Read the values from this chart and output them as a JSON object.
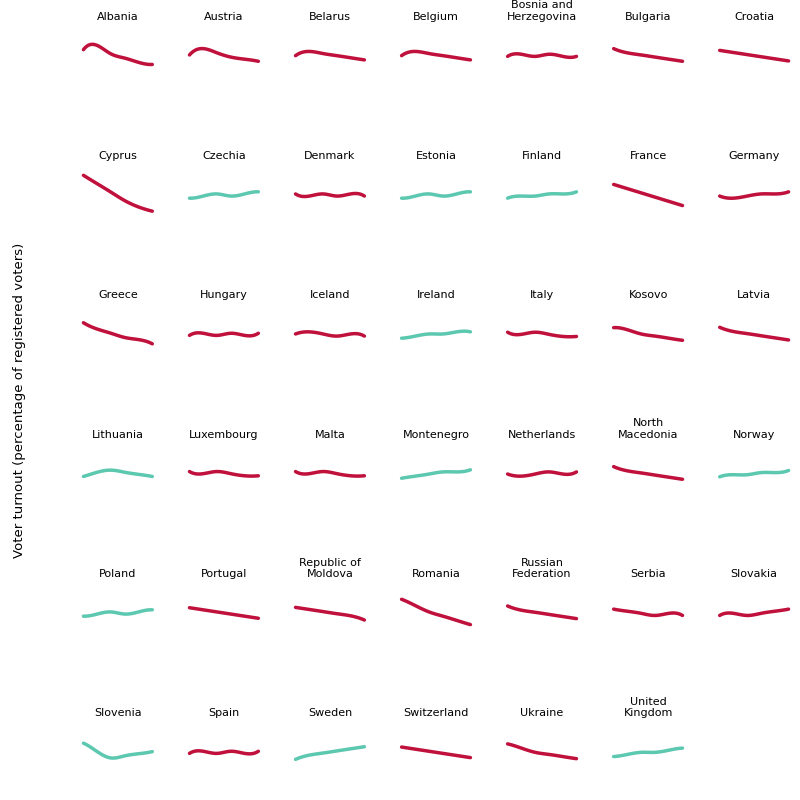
{
  "countries": [
    {
      "name": "Albania",
      "color": "crimson",
      "y": [
        0.5,
        0.52,
        0.48,
        0.46,
        0.44,
        0.43
      ],
      "row": 0,
      "col": 0
    },
    {
      "name": "Austria",
      "color": "crimson",
      "y": [
        0.55,
        0.58,
        0.56,
        0.54,
        0.53,
        0.52
      ],
      "row": 0,
      "col": 1
    },
    {
      "name": "Belarus",
      "color": "crimson",
      "y": [
        0.54,
        0.56,
        0.55,
        0.54,
        0.53,
        0.52
      ],
      "row": 0,
      "col": 2
    },
    {
      "name": "Belgium",
      "color": "crimson",
      "y": [
        0.58,
        0.6,
        0.59,
        0.58,
        0.57,
        0.56
      ],
      "row": 0,
      "col": 3
    },
    {
      "name": "Bosnia and\nHerzegovina",
      "color": "crimson",
      "y": [
        0.5,
        0.51,
        0.5,
        0.51,
        0.5,
        0.5
      ],
      "row": 0,
      "col": 4
    },
    {
      "name": "Bulgaria",
      "color": "crimson",
      "y": [
        0.52,
        0.5,
        0.49,
        0.48,
        0.47,
        0.46
      ],
      "row": 0,
      "col": 5
    },
    {
      "name": "Croatia",
      "color": "crimson",
      "y": [
        0.52,
        0.51,
        0.5,
        0.49,
        0.48,
        0.47
      ],
      "row": 0,
      "col": 6
    },
    {
      "name": "Cyprus",
      "color": "crimson",
      "y": [
        0.6,
        0.56,
        0.52,
        0.48,
        0.45,
        0.43
      ],
      "row": 1,
      "col": 0
    },
    {
      "name": "Czechia",
      "color": "teal",
      "y": [
        0.48,
        0.49,
        0.5,
        0.49,
        0.5,
        0.51
      ],
      "row": 1,
      "col": 1
    },
    {
      "name": "Denmark",
      "color": "crimson",
      "y": [
        0.54,
        0.53,
        0.54,
        0.53,
        0.54,
        0.53
      ],
      "row": 1,
      "col": 2
    },
    {
      "name": "Estonia",
      "color": "teal",
      "y": [
        0.48,
        0.49,
        0.5,
        0.49,
        0.5,
        0.51
      ],
      "row": 1,
      "col": 3
    },
    {
      "name": "Finland",
      "color": "teal",
      "y": [
        0.49,
        0.5,
        0.5,
        0.51,
        0.51,
        0.52
      ],
      "row": 1,
      "col": 4
    },
    {
      "name": "France",
      "color": "crimson",
      "y": [
        0.54,
        0.52,
        0.5,
        0.48,
        0.46,
        0.44
      ],
      "row": 1,
      "col": 5
    },
    {
      "name": "Germany",
      "color": "crimson",
      "y": [
        0.5,
        0.49,
        0.5,
        0.51,
        0.51,
        0.52
      ],
      "row": 1,
      "col": 6
    },
    {
      "name": "Greece",
      "color": "crimson",
      "y": [
        0.54,
        0.51,
        0.49,
        0.47,
        0.46,
        0.44
      ],
      "row": 2,
      "col": 0
    },
    {
      "name": "Hungary",
      "color": "crimson",
      "y": [
        0.5,
        0.51,
        0.5,
        0.51,
        0.5,
        0.51
      ],
      "row": 2,
      "col": 1
    },
    {
      "name": "Iceland",
      "color": "crimson",
      "y": [
        0.54,
        0.55,
        0.54,
        0.53,
        0.54,
        0.53
      ],
      "row": 2,
      "col": 2
    },
    {
      "name": "Ireland",
      "color": "teal",
      "y": [
        0.49,
        0.5,
        0.51,
        0.51,
        0.52,
        0.52
      ],
      "row": 2,
      "col": 3
    },
    {
      "name": "Italy",
      "color": "crimson",
      "y": [
        0.54,
        0.53,
        0.54,
        0.53,
        0.52,
        0.52
      ],
      "row": 2,
      "col": 4
    },
    {
      "name": "Kosovo",
      "color": "crimson",
      "y": [
        0.5,
        0.49,
        0.47,
        0.46,
        0.45,
        0.44
      ],
      "row": 2,
      "col": 5
    },
    {
      "name": "Latvia",
      "color": "crimson",
      "y": [
        0.53,
        0.51,
        0.5,
        0.49,
        0.48,
        0.47
      ],
      "row": 2,
      "col": 6
    },
    {
      "name": "Lithuania",
      "color": "teal",
      "y": [
        0.52,
        0.54,
        0.55,
        0.54,
        0.53,
        0.52
      ],
      "row": 3,
      "col": 0
    },
    {
      "name": "Luxembourg",
      "color": "crimson",
      "y": [
        0.54,
        0.53,
        0.54,
        0.53,
        0.52,
        0.52
      ],
      "row": 3,
      "col": 1
    },
    {
      "name": "Malta",
      "color": "crimson",
      "y": [
        0.54,
        0.53,
        0.54,
        0.53,
        0.52,
        0.52
      ],
      "row": 3,
      "col": 2
    },
    {
      "name": "Montenegro",
      "color": "teal",
      "y": [
        0.49,
        0.5,
        0.51,
        0.52,
        0.52,
        0.53
      ],
      "row": 3,
      "col": 3
    },
    {
      "name": "Netherlands",
      "color": "crimson",
      "y": [
        0.51,
        0.5,
        0.51,
        0.52,
        0.51,
        0.52
      ],
      "row": 3,
      "col": 4
    },
    {
      "name": "North\nMacedonia",
      "color": "crimson",
      "y": [
        0.52,
        0.5,
        0.49,
        0.48,
        0.47,
        0.46
      ],
      "row": 3,
      "col": 5
    },
    {
      "name": "Norway",
      "color": "teal",
      "y": [
        0.52,
        0.53,
        0.53,
        0.54,
        0.54,
        0.55
      ],
      "row": 3,
      "col": 6
    },
    {
      "name": "Poland",
      "color": "teal",
      "y": [
        0.51,
        0.52,
        0.53,
        0.52,
        0.53,
        0.54
      ],
      "row": 4,
      "col": 0
    },
    {
      "name": "Portugal",
      "color": "crimson",
      "y": [
        0.54,
        0.53,
        0.52,
        0.51,
        0.5,
        0.49
      ],
      "row": 4,
      "col": 1
    },
    {
      "name": "Republic of\nMoldova",
      "color": "crimson",
      "y": [
        0.54,
        0.53,
        0.52,
        0.51,
        0.5,
        0.48
      ],
      "row": 4,
      "col": 2
    },
    {
      "name": "Romania",
      "color": "crimson",
      "y": [
        0.55,
        0.52,
        0.49,
        0.47,
        0.45,
        0.43
      ],
      "row": 4,
      "col": 3
    },
    {
      "name": "Russian\nFederation",
      "color": "crimson",
      "y": [
        0.54,
        0.52,
        0.51,
        0.5,
        0.49,
        0.48
      ],
      "row": 4,
      "col": 4
    },
    {
      "name": "Serbia",
      "color": "crimson",
      "y": [
        0.54,
        0.53,
        0.52,
        0.51,
        0.52,
        0.51
      ],
      "row": 4,
      "col": 5
    },
    {
      "name": "Slovakia",
      "color": "crimson",
      "y": [
        0.51,
        0.52,
        0.51,
        0.52,
        0.53,
        0.54
      ],
      "row": 4,
      "col": 6
    },
    {
      "name": "Slovenia",
      "color": "teal",
      "y": [
        0.54,
        0.5,
        0.47,
        0.48,
        0.49,
        0.5
      ],
      "row": 5,
      "col": 0
    },
    {
      "name": "Spain",
      "color": "crimson",
      "y": [
        0.51,
        0.52,
        0.51,
        0.52,
        0.51,
        0.52
      ],
      "row": 5,
      "col": 1
    },
    {
      "name": "Sweden",
      "color": "teal",
      "y": [
        0.5,
        0.52,
        0.53,
        0.54,
        0.55,
        0.56
      ],
      "row": 5,
      "col": 2
    },
    {
      "name": "Switzerland",
      "color": "crimson",
      "y": [
        0.5,
        0.49,
        0.48,
        0.47,
        0.46,
        0.45
      ],
      "row": 5,
      "col": 3
    },
    {
      "name": "Ukraine",
      "color": "crimson",
      "y": [
        0.54,
        0.52,
        0.5,
        0.49,
        0.48,
        0.47
      ],
      "row": 5,
      "col": 4
    },
    {
      "name": "United\nKingdom",
      "color": "teal",
      "y": [
        0.5,
        0.51,
        0.52,
        0.52,
        0.53,
        0.54
      ],
      "row": 5,
      "col": 5
    }
  ],
  "crimson_color": "#C0103C",
  "teal_color": "#5DC8B0",
  "background_color": "#FFFFFF",
  "ylabel": "Voter turnout (percentage of registered voters)",
  "n_rows": 6,
  "n_cols": 7,
  "linewidth": 2.5
}
